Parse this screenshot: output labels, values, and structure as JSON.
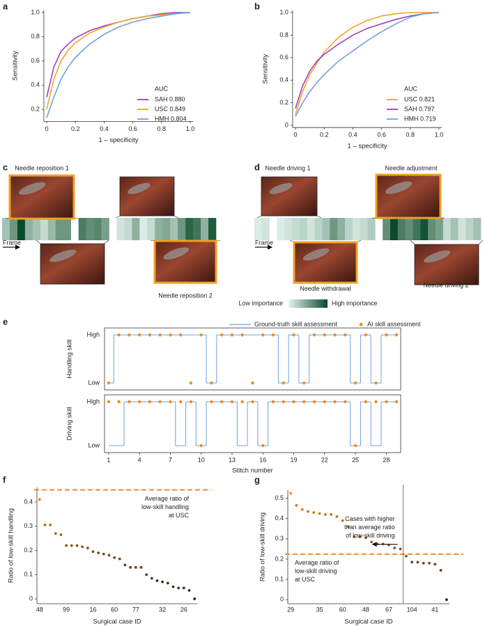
{
  "chart_data": [
    {
      "type": "roc",
      "panel": "a",
      "xlabel": "1 – specificity",
      "ylabel": "Sensitivity",
      "x": [
        0,
        0.05,
        0.1,
        0.15,
        0.2,
        0.3,
        0.4,
        0.5,
        0.6,
        0.7,
        0.8,
        0.9,
        1.0
      ],
      "xlim": [
        -0.02,
        1.02
      ],
      "ylim": [
        0.1,
        1.02
      ],
      "xticks": [
        0,
        0.2,
        0.4,
        0.6,
        0.8,
        {
          "value": 1,
          "label": "1.0"
        }
      ],
      "yticks": [
        0.2,
        0.4,
        0.6,
        0.8,
        {
          "value": 1,
          "label": "1.0"
        }
      ],
      "legend_title": "AUC",
      "series": [
        {
          "name": "SAH 0.880",
          "color": "#9b3fc2",
          "values": [
            0.3,
            0.55,
            0.68,
            0.74,
            0.79,
            0.85,
            0.89,
            0.92,
            0.95,
            0.97,
            0.99,
            1.0,
            1.0
          ]
        },
        {
          "name": "USC 0.849",
          "color": "#f2a324",
          "values": [
            0.2,
            0.45,
            0.6,
            0.69,
            0.75,
            0.83,
            0.88,
            0.92,
            0.95,
            0.97,
            0.98,
            0.99,
            1.0
          ]
        },
        {
          "name": "HMH 0.804",
          "color": "#6f9fe0",
          "values": [
            0.13,
            0.3,
            0.45,
            0.55,
            0.63,
            0.74,
            0.82,
            0.88,
            0.92,
            0.95,
            0.97,
            0.99,
            1.0
          ]
        }
      ]
    },
    {
      "type": "roc",
      "panel": "b",
      "xlabel": "1 – specificity",
      "ylabel": "Sensitivity",
      "x": [
        0,
        0.05,
        0.1,
        0.15,
        0.2,
        0.3,
        0.4,
        0.5,
        0.6,
        0.7,
        0.8,
        0.9,
        1.0
      ],
      "xlim": [
        -0.02,
        1.02
      ],
      "ylim": [
        -0.02,
        1.02
      ],
      "xticks": [
        0,
        0.2,
        0.4,
        0.6,
        0.8,
        {
          "value": 1,
          "label": "1.0"
        }
      ],
      "yticks": [
        0,
        0.2,
        0.4,
        0.6,
        0.8,
        {
          "value": 1,
          "label": "1.0"
        }
      ],
      "legend_title": "AUC",
      "series": [
        {
          "name": "USC 0.821",
          "color": "#f2a324",
          "values": [
            0.1,
            0.3,
            0.45,
            0.55,
            0.65,
            0.78,
            0.87,
            0.93,
            0.97,
            0.99,
            1.0,
            1.0,
            1.0
          ]
        },
        {
          "name": "SAH 0.797",
          "color": "#9b3fc2",
          "values": [
            0.15,
            0.35,
            0.48,
            0.57,
            0.63,
            0.72,
            0.8,
            0.86,
            0.9,
            0.94,
            0.97,
            0.99,
            1.0
          ]
        },
        {
          "name": "HMH 0.719",
          "color": "#6f9fe0",
          "values": [
            0.08,
            0.2,
            0.3,
            0.38,
            0.45,
            0.57,
            0.66,
            0.75,
            0.83,
            0.9,
            0.96,
            0.99,
            1.0
          ]
        }
      ]
    },
    {
      "type": "heatmap",
      "panel": "c",
      "frame_label": "Frame",
      "annotations": [
        "Needle reposition 1",
        "Needle reposition 2"
      ],
      "colors": [
        "#e6f5f0",
        "#0a4a28"
      ],
      "colorbar": [
        "Low importance",
        "High importance"
      ],
      "values": [
        0.3,
        0.55,
        1.0,
        0.4,
        0.3,
        0.15,
        0.35,
        0.55,
        0.55,
        null,
        0.7,
        0.6,
        0.65,
        0.5,
        null,
        0.1,
        0.15,
        0.4,
        0.05,
        0.15,
        0.4,
        0.45,
        0.3,
        0.55,
        0.85,
        0.75,
        0.4,
        0.9
      ]
    },
    {
      "type": "heatmap",
      "panel": "d",
      "frame_label": "Frame",
      "annotations": [
        "Needle driving 1",
        "Needle adjustment",
        "Needle withdrawal",
        "Needle driving 2"
      ],
      "colors": [
        "#e6f5f0",
        "#0a4a28"
      ],
      "values": [
        0.05,
        0.1,
        null,
        0.05,
        0.1,
        0.15,
        0.2,
        0.1,
        0.2,
        0.3,
        0.55,
        0.4,
        0.2,
        0.1,
        0.15,
        0.25,
        null,
        0.6,
        1.0,
        0.7,
        0.6,
        0.75,
        0.95,
        0.6,
        0.5,
        0.15,
        0.3,
        0.1,
        0.2,
        0.3
      ]
    },
    {
      "type": "step",
      "panel": "e",
      "xlabel": "Stitch number",
      "x": [
        1,
        2,
        3,
        4,
        5,
        6,
        7,
        8,
        9,
        10,
        11,
        12,
        13,
        14,
        15,
        16,
        17,
        18,
        19,
        20,
        21,
        22,
        23,
        24,
        25,
        26,
        27,
        28,
        29
      ],
      "xlim": [
        0.6,
        29.4
      ],
      "xticks": [
        1,
        4,
        7,
        10,
        13,
        16,
        19,
        22,
        25,
        28
      ],
      "levels": [
        "Low",
        "High"
      ],
      "series": [
        {
          "name": "Ground-truth skill assessment",
          "color": "#6f9fe0"
        },
        {
          "name": "AI skill assessment",
          "color": "#f08c1e"
        }
      ],
      "subplots": [
        {
          "ylabel": "Handling skill",
          "truth": [
            0,
            1,
            1,
            1,
            1,
            1,
            1,
            1,
            1,
            1,
            0,
            1,
            1,
            1,
            1,
            1,
            1,
            0,
            1,
            0,
            1,
            1,
            1,
            1,
            0,
            1,
            0,
            1,
            1
          ],
          "ai": [
            0,
            1,
            1,
            1,
            1,
            1,
            1,
            1,
            0,
            1,
            0,
            1,
            1,
            1,
            0,
            1,
            1,
            0,
            1,
            0,
            1,
            1,
            1,
            1,
            0,
            1,
            0,
            1,
            1
          ]
        },
        {
          "ylabel": "Driving skill",
          "truth": [
            0,
            0,
            1,
            1,
            1,
            1,
            1,
            0,
            1,
            0,
            1,
            1,
            1,
            0,
            1,
            0,
            1,
            1,
            1,
            1,
            1,
            1,
            1,
            1,
            0,
            1,
            0,
            1,
            1
          ],
          "ai": [
            1,
            1,
            1,
            1,
            1,
            1,
            1,
            1,
            1,
            0,
            1,
            1,
            1,
            1,
            1,
            0,
            1,
            1,
            1,
            1,
            1,
            1,
            1,
            1,
            0,
            1,
            1,
            1,
            1
          ]
        }
      ]
    },
    {
      "type": "dot",
      "panel": "f",
      "xlabel": "Surgical case ID",
      "ylabel": "Ratio of low-skill handling",
      "categories": [
        "48",
        null,
        null,
        null,
        null,
        "99",
        null,
        null,
        null,
        null,
        "16",
        null,
        null,
        null,
        "60",
        null,
        null,
        null,
        "77",
        null,
        null,
        null,
        null,
        "32",
        null,
        null,
        null,
        "26",
        null,
        null
      ],
      "values": [
        0.41,
        0.305,
        0.305,
        0.27,
        0.265,
        0.22,
        0.22,
        0.22,
        0.215,
        0.21,
        0.195,
        0.19,
        0.185,
        0.18,
        0.17,
        0.165,
        0.14,
        0.13,
        0.13,
        0.13,
        0.1,
        0.085,
        0.075,
        0.07,
        0.065,
        0.05,
        0.045,
        0.045,
        0.035,
        0
      ],
      "ylim": [
        -0.02,
        0.46
      ],
      "yticks": [
        0,
        0.1,
        0.2,
        0.3,
        0.4
      ],
      "colormap": [
        "#2a1a10",
        "#f08c1e"
      ],
      "average": 0.45,
      "average_color": "#f08c1e",
      "average_label": [
        "Average ratio of",
        "low-skill handling",
        "at USC"
      ]
    },
    {
      "type": "dot",
      "panel": "g",
      "xlabel": "Surgical case ID",
      "ylabel": "Ratio of low-skill driving",
      "categories": [
        "29",
        null,
        null,
        null,
        null,
        "35",
        null,
        null,
        null,
        "60",
        null,
        null,
        null,
        "48",
        null,
        null,
        null,
        "67",
        null,
        null,
        null,
        "104",
        null,
        null,
        null,
        "41",
        null,
        null
      ],
      "values": [
        0.525,
        0.465,
        0.445,
        0.435,
        0.43,
        0.425,
        0.42,
        0.42,
        0.41,
        0.39,
        0.36,
        0.31,
        0.31,
        0.305,
        0.285,
        0.275,
        0.275,
        0.27,
        0.255,
        0.25,
        0.215,
        0.185,
        0.185,
        0.18,
        0.18,
        0.175,
        0.145,
        0
      ],
      "ylim": [
        -0.02,
        0.54
      ],
      "yticks": [
        0,
        0.1,
        0.2,
        0.3,
        0.4,
        0.5
      ],
      "colormap": [
        "#2a1a10",
        "#f08c1e"
      ],
      "average": 0.225,
      "average_color": "#f08c1e",
      "average_label": [
        "Average ratio of",
        "low-skill driving",
        "at USC"
      ],
      "higher_label": [
        "Cases with higher",
        "than average ratio",
        "of low-skill driving"
      ]
    }
  ]
}
